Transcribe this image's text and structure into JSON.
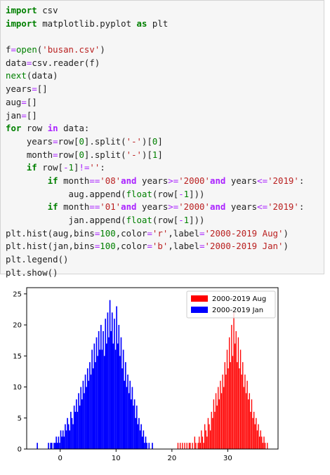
{
  "code_cell": {
    "lines": [
      [
        [
          "kw",
          "import"
        ],
        [
          "nm",
          " csv"
        ]
      ],
      [
        [
          "kw",
          "import"
        ],
        [
          "nm",
          " matplotlib.pyplot "
        ],
        [
          "kw",
          "as"
        ],
        [
          "nm",
          " plt"
        ]
      ],
      [],
      [
        [
          "nm",
          "f"
        ],
        [
          "eq",
          "="
        ],
        [
          "bi",
          "open"
        ],
        [
          "nm",
          "("
        ],
        [
          "str",
          "'busan.csv'"
        ],
        [
          "nm",
          ")"
        ]
      ],
      [
        [
          "nm",
          "data"
        ],
        [
          "eq",
          "="
        ],
        [
          "nm",
          "csv.reader(f)"
        ]
      ],
      [
        [
          "bi",
          "next"
        ],
        [
          "nm",
          "(data)"
        ]
      ],
      [
        [
          "nm",
          "years"
        ],
        [
          "eq",
          "="
        ],
        [
          "nm",
          "[]"
        ]
      ],
      [
        [
          "nm",
          "aug"
        ],
        [
          "eq",
          "="
        ],
        [
          "nm",
          "[]"
        ]
      ],
      [
        [
          "nm",
          "jan"
        ],
        [
          "eq",
          "="
        ],
        [
          "nm",
          "[]"
        ]
      ],
      [
        [
          "kw",
          "for"
        ],
        [
          "nm",
          " row "
        ],
        [
          "op",
          "in"
        ],
        [
          "nm",
          " data:"
        ]
      ],
      [
        [
          "nm",
          "    years"
        ],
        [
          "eq",
          "="
        ],
        [
          "nm",
          "row["
        ],
        [
          "num",
          "0"
        ],
        [
          "nm",
          "].split("
        ],
        [
          "str",
          "'-'"
        ],
        [
          "nm",
          ")["
        ],
        [
          "num",
          "0"
        ],
        [
          "nm",
          "]"
        ]
      ],
      [
        [
          "nm",
          "    month"
        ],
        [
          "eq",
          "="
        ],
        [
          "nm",
          "row["
        ],
        [
          "num",
          "0"
        ],
        [
          "nm",
          "].split("
        ],
        [
          "str",
          "'-'"
        ],
        [
          "nm",
          ")["
        ],
        [
          "num",
          "1"
        ],
        [
          "nm",
          "]"
        ]
      ],
      [
        [
          "nm",
          "    "
        ],
        [
          "kw",
          "if"
        ],
        [
          "nm",
          " row["
        ],
        [
          "eq",
          "-"
        ],
        [
          "num",
          "1"
        ],
        [
          "nm",
          "]"
        ],
        [
          "eq",
          "!="
        ],
        [
          "str",
          "''"
        ],
        [
          "nm",
          ":"
        ]
      ],
      [
        [
          "nm",
          "        "
        ],
        [
          "kw",
          "if"
        ],
        [
          "nm",
          " month"
        ],
        [
          "eq",
          "=="
        ],
        [
          "str",
          "'08'"
        ],
        [
          "op",
          "and"
        ],
        [
          "nm",
          " years"
        ],
        [
          "eq",
          ">="
        ],
        [
          "str",
          "'2000'"
        ],
        [
          "op",
          "and"
        ],
        [
          "nm",
          " years"
        ],
        [
          "eq",
          "<="
        ],
        [
          "str",
          "'2019'"
        ],
        [
          "nm",
          ":"
        ]
      ],
      [
        [
          "nm",
          "            aug.append("
        ],
        [
          "bi",
          "float"
        ],
        [
          "nm",
          "(row["
        ],
        [
          "eq",
          "-"
        ],
        [
          "num",
          "1"
        ],
        [
          "nm",
          "]))"
        ]
      ],
      [
        [
          "nm",
          "        "
        ],
        [
          "kw",
          "if"
        ],
        [
          "nm",
          " month"
        ],
        [
          "eq",
          "=="
        ],
        [
          "str",
          "'01'"
        ],
        [
          "op",
          "and"
        ],
        [
          "nm",
          " years"
        ],
        [
          "eq",
          ">="
        ],
        [
          "str",
          "'2000'"
        ],
        [
          "op",
          "and"
        ],
        [
          "nm",
          " years"
        ],
        [
          "eq",
          "<="
        ],
        [
          "str",
          "'2019'"
        ],
        [
          "nm",
          ":"
        ]
      ],
      [
        [
          "nm",
          "            jan.append("
        ],
        [
          "bi",
          "float"
        ],
        [
          "nm",
          "(row["
        ],
        [
          "eq",
          "-"
        ],
        [
          "num",
          "1"
        ],
        [
          "nm",
          "]))"
        ]
      ],
      [
        [
          "nm",
          "plt.hist(aug,bins"
        ],
        [
          "eq",
          "="
        ],
        [
          "num",
          "100"
        ],
        [
          "nm",
          ",color"
        ],
        [
          "eq",
          "="
        ],
        [
          "str",
          "'r'"
        ],
        [
          "nm",
          ",label"
        ],
        [
          "eq",
          "="
        ],
        [
          "str",
          "'2000-2019 Aug'"
        ],
        [
          "nm",
          ")"
        ]
      ],
      [
        [
          "nm",
          "plt.hist(jan,bins"
        ],
        [
          "eq",
          "="
        ],
        [
          "num",
          "100"
        ],
        [
          "nm",
          ",color"
        ],
        [
          "eq",
          "="
        ],
        [
          "str",
          "'b'"
        ],
        [
          "nm",
          ",label"
        ],
        [
          "eq",
          "="
        ],
        [
          "str",
          "'2000-2019 Jan'"
        ],
        [
          "nm",
          ")"
        ]
      ],
      [
        [
          "nm",
          "plt.legend()"
        ]
      ],
      [
        [
          "nm",
          "plt.show()"
        ]
      ]
    ]
  },
  "chart_data": {
    "type": "bar",
    "title": "",
    "xlabel": "",
    "ylabel": "",
    "xlim": [
      -6,
      39
    ],
    "ylim": [
      0,
      26
    ],
    "xticks": [
      0,
      10,
      20,
      30
    ],
    "yticks": [
      0,
      5,
      10,
      15,
      20,
      25
    ],
    "grid": false,
    "legend_position": "top-right",
    "series": [
      {
        "name": "2000-2019 Aug",
        "color": "#ff0000",
        "bin_width": 0.17,
        "bins": [
          [
            21.0,
            1
          ],
          [
            21.2,
            0
          ],
          [
            21.4,
            1
          ],
          [
            21.6,
            0
          ],
          [
            21.8,
            1
          ],
          [
            22.0,
            0
          ],
          [
            22.2,
            1
          ],
          [
            22.4,
            0
          ],
          [
            22.6,
            1
          ],
          [
            22.8,
            0
          ],
          [
            23.0,
            1
          ],
          [
            23.2,
            1
          ],
          [
            23.4,
            0
          ],
          [
            23.6,
            1
          ],
          [
            23.8,
            0
          ],
          [
            24.0,
            2
          ],
          [
            24.2,
            1
          ],
          [
            24.4,
            0
          ],
          [
            24.6,
            1
          ],
          [
            24.8,
            2
          ],
          [
            25.0,
            1
          ],
          [
            25.2,
            3
          ],
          [
            25.4,
            2
          ],
          [
            25.6,
            1
          ],
          [
            25.8,
            4
          ],
          [
            26.0,
            3
          ],
          [
            26.2,
            2
          ],
          [
            26.4,
            5
          ],
          [
            26.6,
            4
          ],
          [
            26.8,
            3
          ],
          [
            27.0,
            6
          ],
          [
            27.2,
            5
          ],
          [
            27.4,
            8
          ],
          [
            27.6,
            6
          ],
          [
            27.8,
            9
          ],
          [
            28.0,
            7
          ],
          [
            28.2,
            10
          ],
          [
            28.4,
            8
          ],
          [
            28.6,
            11
          ],
          [
            28.8,
            9
          ],
          [
            29.0,
            12
          ],
          [
            29.2,
            10
          ],
          [
            29.4,
            14
          ],
          [
            29.6,
            12
          ],
          [
            29.8,
            16
          ],
          [
            30.0,
            13
          ],
          [
            30.2,
            18
          ],
          [
            30.4,
            14
          ],
          [
            30.6,
            20
          ],
          [
            30.8,
            15
          ],
          [
            31.0,
            22
          ],
          [
            31.2,
            17
          ],
          [
            31.4,
            19
          ],
          [
            31.6,
            14
          ],
          [
            31.8,
            18
          ],
          [
            32.0,
            13
          ],
          [
            32.2,
            16
          ],
          [
            32.4,
            12
          ],
          [
            32.6,
            14
          ],
          [
            32.8,
            10
          ],
          [
            33.0,
            12
          ],
          [
            33.2,
            9
          ],
          [
            33.4,
            11
          ],
          [
            33.6,
            8
          ],
          [
            33.8,
            9
          ],
          [
            34.0,
            6
          ],
          [
            34.2,
            8
          ],
          [
            34.4,
            5
          ],
          [
            34.6,
            6
          ],
          [
            34.8,
            4
          ],
          [
            35.0,
            5
          ],
          [
            35.2,
            3
          ],
          [
            35.4,
            4
          ],
          [
            35.6,
            2
          ],
          [
            35.8,
            3
          ],
          [
            36.0,
            2
          ],
          [
            36.2,
            1
          ],
          [
            36.4,
            2
          ],
          [
            36.6,
            1
          ],
          [
            36.8,
            0
          ],
          [
            37.0,
            1
          ]
        ]
      },
      {
        "name": "2000-2019 Jan",
        "color": "#0000ff",
        "bin_width": 0.21,
        "bins": [
          [
            -4.2,
            1
          ],
          [
            -4.0,
            0
          ],
          [
            -3.8,
            0
          ],
          [
            -3.6,
            0
          ],
          [
            -3.4,
            0
          ],
          [
            -3.2,
            0
          ],
          [
            -3.0,
            0
          ],
          [
            -2.8,
            0
          ],
          [
            -2.6,
            0
          ],
          [
            -2.4,
            0
          ],
          [
            -2.2,
            1
          ],
          [
            -2.0,
            0
          ],
          [
            -1.8,
            1
          ],
          [
            -1.6,
            1
          ],
          [
            -1.4,
            0
          ],
          [
            -1.2,
            1
          ],
          [
            -1.0,
            1
          ],
          [
            -0.8,
            2
          ],
          [
            -0.6,
            1
          ],
          [
            -0.4,
            2
          ],
          [
            -0.2,
            1
          ],
          [
            0.0,
            3
          ],
          [
            0.2,
            2
          ],
          [
            0.4,
            3
          ],
          [
            0.6,
            2
          ],
          [
            0.8,
            4
          ],
          [
            1.0,
            3
          ],
          [
            1.2,
            5
          ],
          [
            1.4,
            4
          ],
          [
            1.6,
            3
          ],
          [
            1.8,
            6
          ],
          [
            2.0,
            5
          ],
          [
            2.2,
            4
          ],
          [
            2.4,
            7
          ],
          [
            2.6,
            6
          ],
          [
            2.8,
            8
          ],
          [
            3.0,
            6
          ],
          [
            3.2,
            9
          ],
          [
            3.4,
            7
          ],
          [
            3.6,
            10
          ],
          [
            3.8,
            8
          ],
          [
            4.0,
            11
          ],
          [
            4.2,
            9
          ],
          [
            4.4,
            12
          ],
          [
            4.6,
            10
          ],
          [
            4.8,
            13
          ],
          [
            5.0,
            11
          ],
          [
            5.2,
            14
          ],
          [
            5.4,
            12
          ],
          [
            5.6,
            16
          ],
          [
            5.8,
            13
          ],
          [
            6.0,
            17
          ],
          [
            6.2,
            14
          ],
          [
            6.4,
            18
          ],
          [
            6.6,
            15
          ],
          [
            6.8,
            19
          ],
          [
            7.0,
            16
          ],
          [
            7.2,
            20
          ],
          [
            7.4,
            16
          ],
          [
            7.6,
            19
          ],
          [
            7.8,
            15
          ],
          [
            8.0,
            21
          ],
          [
            8.2,
            17
          ],
          [
            8.4,
            22
          ],
          [
            8.6,
            18
          ],
          [
            8.8,
            24
          ],
          [
            9.0,
            19
          ],
          [
            9.2,
            22
          ],
          [
            9.4,
            17
          ],
          [
            9.6,
            21
          ],
          [
            9.8,
            16
          ],
          [
            10.0,
            23
          ],
          [
            10.2,
            17
          ],
          [
            10.4,
            20
          ],
          [
            10.6,
            15
          ],
          [
            10.8,
            18
          ],
          [
            11.0,
            13
          ],
          [
            11.2,
            16
          ],
          [
            11.4,
            11
          ],
          [
            11.6,
            14
          ],
          [
            11.8,
            10
          ],
          [
            12.0,
            12
          ],
          [
            12.2,
            9
          ],
          [
            12.4,
            11
          ],
          [
            12.6,
            8
          ],
          [
            12.8,
            10
          ],
          [
            13.0,
            7
          ],
          [
            13.2,
            8
          ],
          [
            13.4,
            5
          ],
          [
            13.6,
            7
          ],
          [
            13.8,
            4
          ],
          [
            14.0,
            5
          ],
          [
            14.2,
            3
          ],
          [
            14.4,
            4
          ],
          [
            14.6,
            2
          ],
          [
            14.8,
            3
          ],
          [
            15.0,
            1
          ],
          [
            15.2,
            2
          ],
          [
            15.4,
            1
          ],
          [
            15.6,
            0
          ],
          [
            15.8,
            1
          ],
          [
            16.0,
            0
          ],
          [
            16.2,
            0
          ],
          [
            16.4,
            1
          ]
        ]
      }
    ]
  }
}
